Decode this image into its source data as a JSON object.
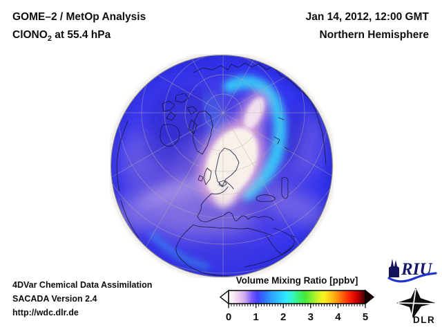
{
  "header": {
    "title_line1": "GOME–2 / MetOp Analysis",
    "species": "ClONO",
    "species_sub": "2",
    "level_suffix": " at 55.4 hPa",
    "datetime": "Jan 14, 2012, 12:00 GMT",
    "hemisphere": "Northern Hemisphere"
  },
  "footer": {
    "line1": "4DVar Chemical Data Assimilation",
    "line2": "SACADA Version 2.4",
    "line3": "http://wdc.dlr.de"
  },
  "colorbar": {
    "title": "Volume Mixing Ratio [ppbv]",
    "min": 0,
    "max": 5,
    "tick_labels": [
      "0",
      "1",
      "2",
      "3",
      "4",
      "5"
    ],
    "minor_ticks_per_unit": 10,
    "gradient_stops": [
      [
        0.0,
        "#ffffff"
      ],
      [
        0.04,
        "#f7e8f3"
      ],
      [
        0.08,
        "#ecc6ec"
      ],
      [
        0.12,
        "#c9a8f0"
      ],
      [
        0.17,
        "#7a5cff"
      ],
      [
        0.21,
        "#4840ff"
      ],
      [
        0.26,
        "#2e6eff"
      ],
      [
        0.31,
        "#2f9dff"
      ],
      [
        0.37,
        "#2fc8ff"
      ],
      [
        0.42,
        "#2eeaff"
      ],
      [
        0.47,
        "#35f5c0"
      ],
      [
        0.52,
        "#3cf06a"
      ],
      [
        0.56,
        "#45e83c"
      ],
      [
        0.61,
        "#8cee2e"
      ],
      [
        0.66,
        "#d8f426"
      ],
      [
        0.7,
        "#fff020"
      ],
      [
        0.75,
        "#ffc214"
      ],
      [
        0.8,
        "#ff8c0e"
      ],
      [
        0.85,
        "#ff4a08"
      ],
      [
        0.89,
        "#f81e04"
      ],
      [
        0.93,
        "#d80000"
      ],
      [
        0.96,
        "#9c0000"
      ],
      [
        1.0,
        "#3a0000"
      ]
    ],
    "below_range_color": "#ffffff",
    "above_range_color": "#1c0000"
  },
  "globe": {
    "view": "Northern Hemisphere orthographic globe, pole near upper center, Europe and Africa at bottom",
    "field": "ClONO2 volume mixing ratio at 55.4 hPa",
    "low_region_note": "near-zero (white/pink) cells over Scandinavia and the Barents Sea surrounded by a cyan band",
    "colors": {
      "base_blue": "#3334ee",
      "violet_center": "#6e5dd6",
      "lavender_band": "#a08ae4",
      "cyan_band": "#35cdf8",
      "low_white": "#f8f1ea",
      "pink_fringe": "#e3aadf",
      "coastline": "#16163a",
      "graticule": "#b9b0a4"
    }
  },
  "logos": {
    "riu_text": "RIU",
    "dlr_text": "DLR"
  }
}
